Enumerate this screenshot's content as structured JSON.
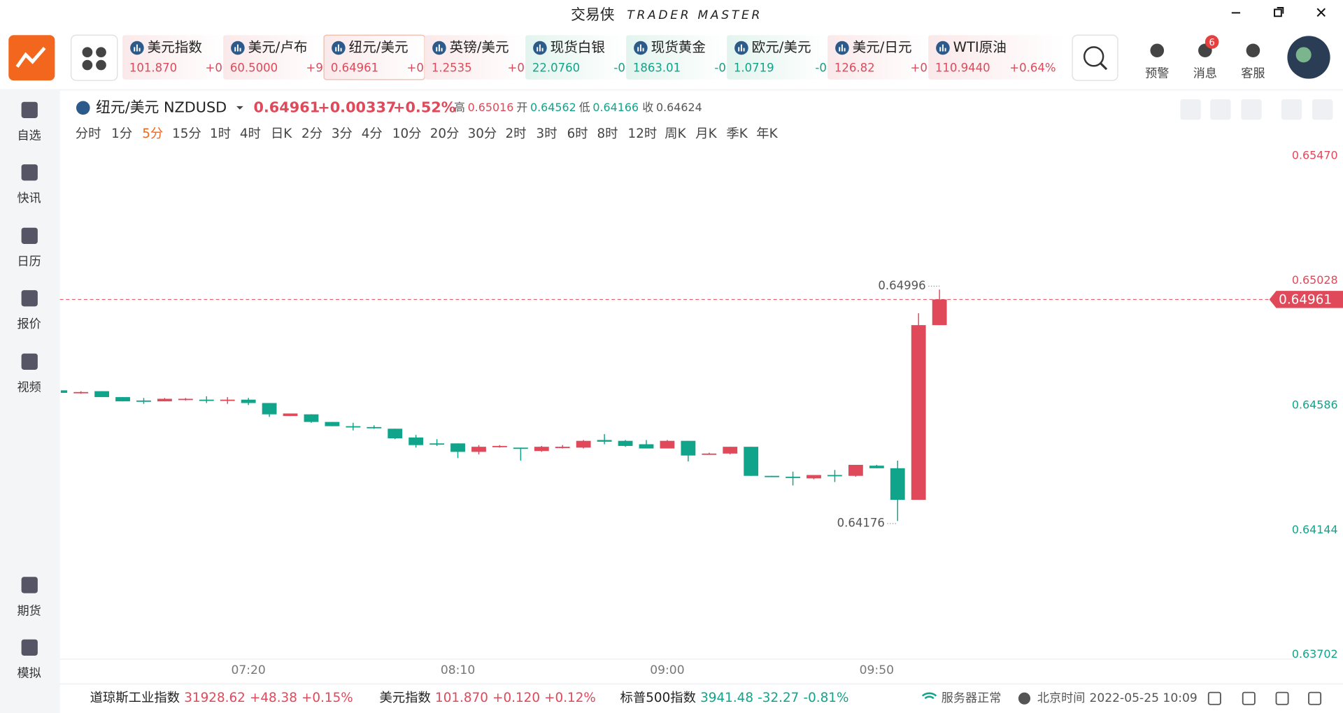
{
  "app": {
    "title": "交易侠",
    "subtitle": "TRADER MASTER"
  },
  "tickers": [
    {
      "name": "美元指数",
      "price": "101.870",
      "change": "+0"
    },
    {
      "name": "美元/卢布",
      "price": "60.5000",
      "change": "+9"
    },
    {
      "name": "纽元/美元",
      "price": "0.64961",
      "change": "+0"
    },
    {
      "name": "英镑/美元",
      "price": "1.2535",
      "change": "+0"
    },
    {
      "name": "现货白银",
      "price": "22.0760",
      "change": "-0"
    },
    {
      "name": "现货黄金",
      "price": "1863.01",
      "change": "-0"
    },
    {
      "name": "欧元/美元",
      "price": "1.0719",
      "change": "-0"
    },
    {
      "name": "美元/日元",
      "price": "126.82",
      "change": "+0"
    },
    {
      "name": "WTI原油",
      "price": "110.9440",
      "change": "+0.64%"
    }
  ],
  "top_actions": [
    {
      "label": "预警"
    },
    {
      "label": "消息",
      "badge": "6"
    },
    {
      "label": "客服"
    }
  ],
  "sidebar": [
    "自选",
    "快讯",
    "日历",
    "报价",
    "视频",
    "期货",
    "模拟"
  ],
  "header": {
    "symbol": "纽元/美元 NZDUSD",
    "price": "0.64961",
    "change": "+0.00337",
    "change_pct": "+0.52%",
    "high_label": "高",
    "high": "0.65016",
    "open_label": "开",
    "open": "0.64562",
    "low_label": "低",
    "low": "0.64166",
    "close_label": "收",
    "close": "0.64624"
  },
  "periods": [
    "分时",
    "1分",
    "5分",
    "15分",
    "1时",
    "4时",
    "日K",
    "2分",
    "3分",
    "4分",
    "10分",
    "20分",
    "30分",
    "2时",
    "3时",
    "6时",
    "8时",
    "12时",
    "周K",
    "月K",
    "季K",
    "年K"
  ],
  "active_period": "5分",
  "chart_data": {
    "type": "candlestick",
    "categories": [
      null,
      null,
      null,
      null,
      null,
      null,
      null,
      null,
      null,
      "07:20",
      null,
      null,
      null,
      null,
      null,
      null,
      null,
      null,
      null,
      "08:10",
      null,
      null,
      null,
      null,
      null,
      null,
      null,
      null,
      null,
      "09:00",
      null,
      null,
      null,
      null,
      null,
      null,
      null,
      null,
      null,
      "09:50",
      null,
      null,
      null
    ],
    "open": [
      0.64639,
      0.6463,
      0.64636,
      0.64615,
      0.64603,
      0.646,
      0.64606,
      0.64606,
      0.64603,
      0.64606,
      0.64594,
      0.64548,
      0.64554,
      0.64527,
      0.64512,
      0.64509,
      0.64503,
      0.64472,
      0.64451,
      0.64451,
      0.64421,
      0.64439,
      0.64436,
      0.64424,
      0.64436,
      0.64436,
      0.64463,
      0.6446,
      0.64448,
      0.64433,
      0.6446,
      0.64412,
      0.64415,
      0.64439,
      0.64336,
      0.64333,
      0.64327,
      0.64339,
      0.64336,
      0.64372,
      0.64363,
      0.64251,
      0.6487
    ],
    "high": [
      0.64642,
      0.64636,
      0.64636,
      0.64615,
      0.64612,
      0.64612,
      0.64612,
      0.64618,
      0.64615,
      0.64612,
      0.64594,
      0.64557,
      0.64554,
      0.64527,
      0.64524,
      0.64515,
      0.64503,
      0.64481,
      0.64466,
      0.64451,
      0.64445,
      0.64445,
      0.64436,
      0.64442,
      0.64445,
      0.64463,
      0.64484,
      0.64463,
      0.64463,
      0.64463,
      0.6446,
      0.64418,
      0.64439,
      0.64439,
      0.64336,
      0.64351,
      0.64339,
      0.64357,
      0.64375,
      0.64375,
      0.6439,
      0.64912,
      0.64996
    ],
    "low": [
      0.64627,
      0.64627,
      0.64615,
      0.646,
      0.64591,
      0.646,
      0.64603,
      0.64594,
      0.64591,
      0.64587,
      0.64545,
      0.64548,
      0.64524,
      0.64512,
      0.64497,
      0.64503,
      0.64466,
      0.64436,
      0.64442,
      0.64399,
      0.64412,
      0.64436,
      0.6439,
      0.64421,
      0.64433,
      0.64433,
      0.64448,
      0.64439,
      0.64433,
      0.64433,
      0.64387,
      0.64412,
      0.64412,
      0.64336,
      0.64333,
      0.64302,
      0.64324,
      0.64314,
      0.64333,
      0.64363,
      0.64176,
      0.64251,
      0.6487
    ],
    "close": [
      0.6463,
      0.64633,
      0.64615,
      0.646,
      0.646,
      0.64609,
      0.64609,
      0.64603,
      0.64606,
      0.64594,
      0.64554,
      0.64557,
      0.64527,
      0.64512,
      0.64509,
      0.64506,
      0.64469,
      0.64445,
      0.64448,
      0.64421,
      0.64439,
      0.64442,
      0.64433,
      0.64439,
      0.64439,
      0.6446,
      0.64457,
      0.64442,
      0.64433,
      0.6446,
      0.64408,
      0.64415,
      0.64439,
      0.64336,
      0.64333,
      0.6433,
      0.64339,
      0.64336,
      0.64375,
      0.64363,
      0.64251,
      0.6487,
      0.64961
    ],
    "up_color": "#e0495a",
    "down_color": "#10a58a",
    "ylim": [
      0.63702,
      0.6547
    ],
    "yticks": [
      0.63702,
      0.64144,
      0.64586,
      0.65028,
      {
        "value": 0.6547,
        "label": "0.65470"
      }
    ],
    "grid": false,
    "last_price": 0.64961,
    "high_annotation": "0.64996",
    "low_annotation": "0.64176"
  },
  "footer": {
    "indices": [
      {
        "name": "道琼斯工业指数",
        "price": "31928.62",
        "change": "+48.38",
        "pct": "+0.15%"
      },
      {
        "name": "美元指数",
        "price": "101.870",
        "change": "+0.120",
        "pct": "+0.12%"
      },
      {
        "name": "标普500指数",
        "price": "3941.48",
        "change": "-32.27",
        "pct": "-0.81%"
      }
    ],
    "server": "服务器正常",
    "time_label": "北京时间",
    "time": "2022-05-25 10:09"
  }
}
